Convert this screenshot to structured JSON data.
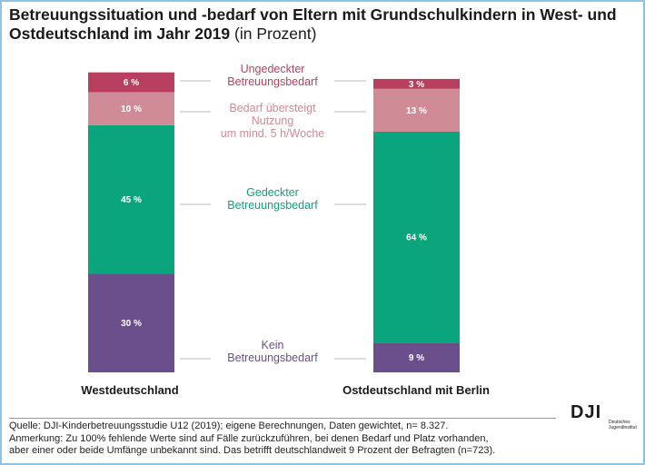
{
  "title": {
    "main": "Betreuungssituation und -bedarf von Eltern mit Grundschulkindern in West- und Ostdeutschland im Jahr 2019",
    "sub": " (in Prozent)"
  },
  "chart_data": {
    "type": "bar",
    "stacked": true,
    "orientation": "vertical",
    "categories": [
      "Westdeutschland",
      "Ostdeutschland mit Berlin"
    ],
    "series": [
      {
        "name": "Kein Betreuungsbedarf",
        "label_lines": [
          "Kein",
          "Betreuungsbedarf"
        ],
        "color": "#6a4f8c",
        "label_color": "#6a4f8c",
        "values": [
          30,
          9
        ]
      },
      {
        "name": "Gedeckter Betreuungsbedarf",
        "label_lines": [
          "Gedeckter",
          "Betreuungsbedarf"
        ],
        "color": "#0aa57c",
        "label_color": "#0aa57c",
        "values": [
          45,
          64
        ]
      },
      {
        "name": "Bedarf übersteigt Nutzung um mind. 5 h/Woche",
        "label_lines": [
          "Bedarf übersteigt",
          "Nutzung",
          "um mind. 5 h/Woche"
        ],
        "color": "#cf8c96",
        "label_color": "#cf8c96",
        "values": [
          10,
          13
        ]
      },
      {
        "name": "Ungedeckter Betreuungsbedarf",
        "label_lines": [
          "Ungedeckter",
          "Betreuungsbedarf"
        ],
        "color": "#b8405e",
        "label_color": "#b8405e",
        "values": [
          6,
          3
        ]
      }
    ],
    "value_suffix": " %",
    "ylim": [
      0,
      100
    ]
  },
  "footer": {
    "source": "Quelle: DJI-Kinderbetreuungsstudie U12 (2019); eigene Berechnungen, Daten gewichtet, n= 8.327.",
    "note_line1": "Anmerkung: Zu 100% fehlende Werte sind auf Fälle zurückzuführen, bei denen Bedarf und Platz vorhanden,",
    "note_line2": "aber einer oder beide Umfänge unbekannt sind. Das betrifft deutschlandweit 9 Prozent der Befragten (n=723)."
  },
  "logo": {
    "mark": "DJI",
    "text_line1": "Deutsches",
    "text_line2": "Jugendinstitut"
  }
}
